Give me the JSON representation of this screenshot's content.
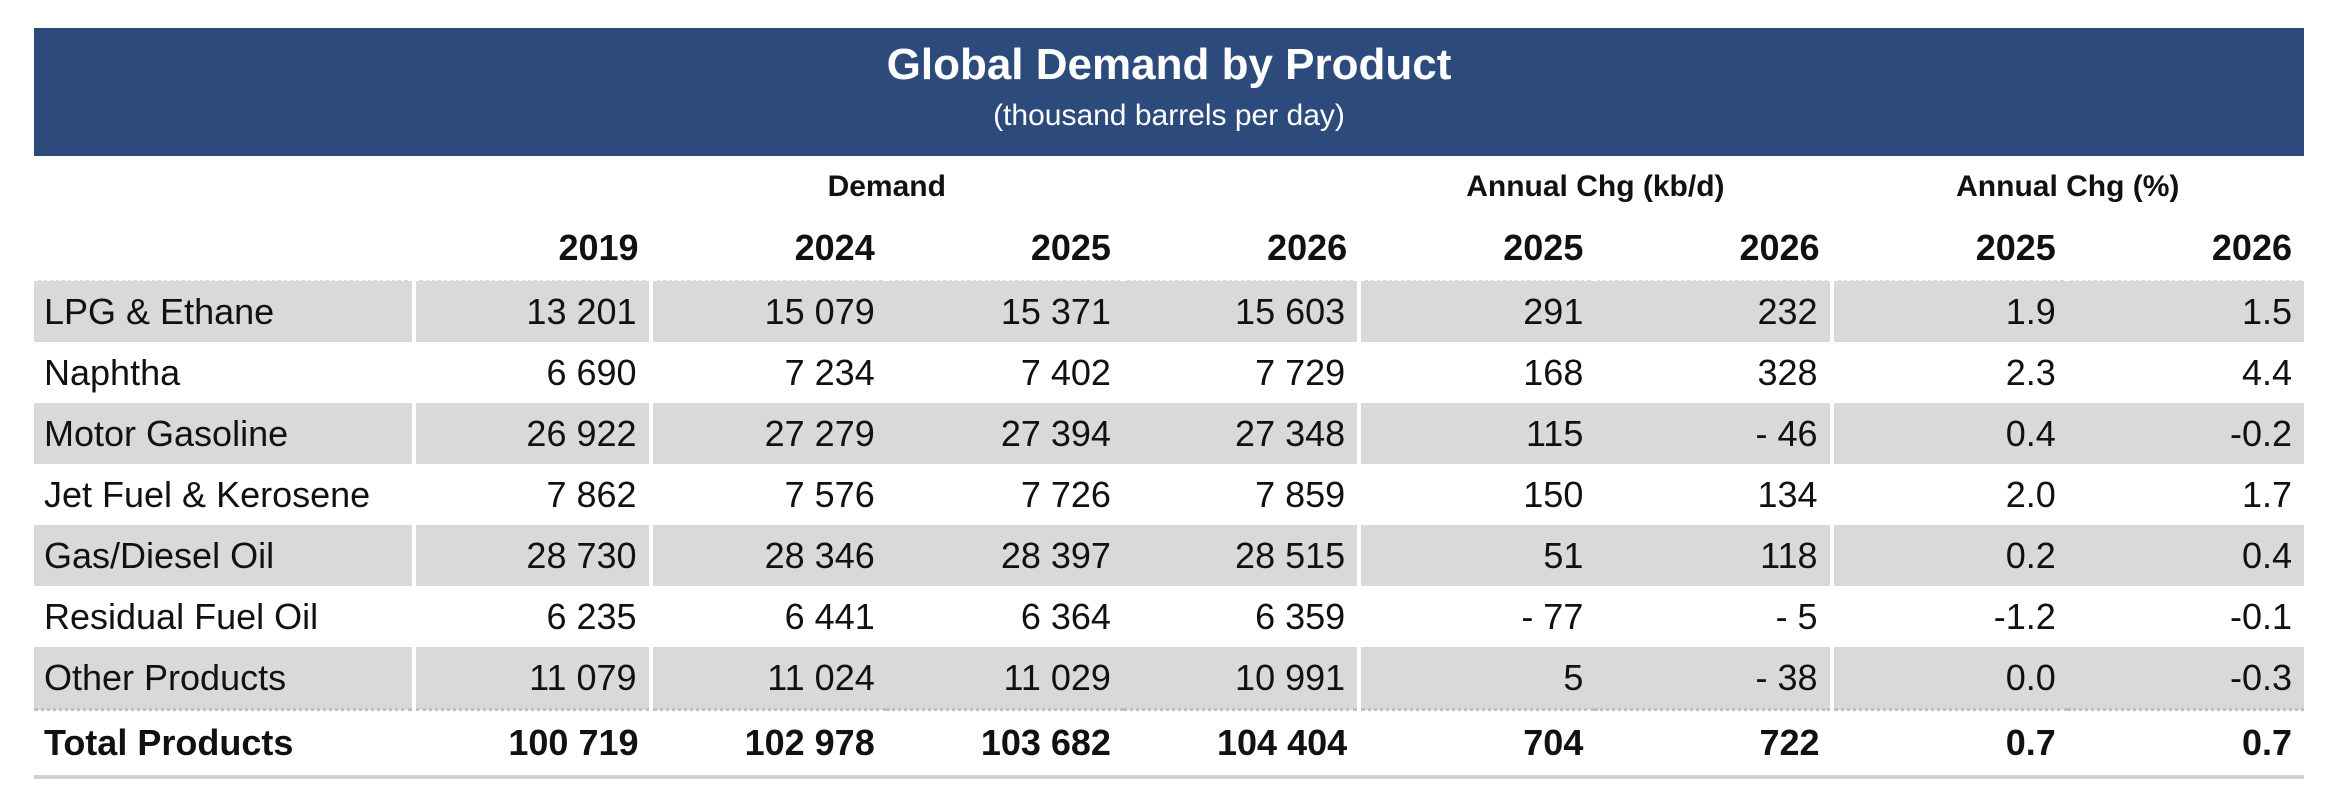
{
  "title": "Global Demand by Product",
  "subtitle": "(thousand barrels per day)",
  "groups": {
    "demand": "Demand",
    "annual_chg_kbd": "Annual Chg (kb/d)",
    "annual_chg_pct": "Annual Chg (%)"
  },
  "years": [
    "2019",
    "2024",
    "2025",
    "2026",
    "2025",
    "2026",
    "2025",
    "2026"
  ],
  "rows": [
    {
      "label": "LPG & Ethane",
      "values": [
        "13 201",
        "15 079",
        "15 371",
        "15 603",
        "291",
        "232",
        "1.9",
        "1.5"
      ]
    },
    {
      "label": "Naphtha",
      "values": [
        "6 690",
        "7 234",
        "7 402",
        "7 729",
        "168",
        "328",
        "2.3",
        "4.4"
      ]
    },
    {
      "label": "Motor Gasoline",
      "values": [
        "26 922",
        "27 279",
        "27 394",
        "27 348",
        "115",
        "- 46",
        "0.4",
        "-0.2"
      ]
    },
    {
      "label": "Jet Fuel & Kerosene",
      "values": [
        "7 862",
        "7 576",
        "7 726",
        "7 859",
        "150",
        "134",
        "2.0",
        "1.7"
      ]
    },
    {
      "label": "Gas/Diesel Oil",
      "values": [
        "28 730",
        "28 346",
        "28 397",
        "28 515",
        "51",
        "118",
        "0.2",
        "0.4"
      ]
    },
    {
      "label": "Residual Fuel Oil",
      "values": [
        "6 235",
        "6 441",
        "6 364",
        "6 359",
        "- 77",
        "- 5",
        "-1.2",
        "-0.1"
      ]
    },
    {
      "label": "Other Products",
      "values": [
        "11 079",
        "11 024",
        "11 029",
        "10 991",
        "5",
        "- 38",
        "0.0",
        "-0.3"
      ]
    }
  ],
  "total": {
    "label": "Total Products",
    "values": [
      "100 719",
      "102 978",
      "103 682",
      "104 404",
      "704",
      "722",
      "0.7",
      "0.7"
    ]
  },
  "colors": {
    "header_bg": "#2d4a7c",
    "header_text": "#ffffff",
    "shade": "#d9d9d9"
  }
}
